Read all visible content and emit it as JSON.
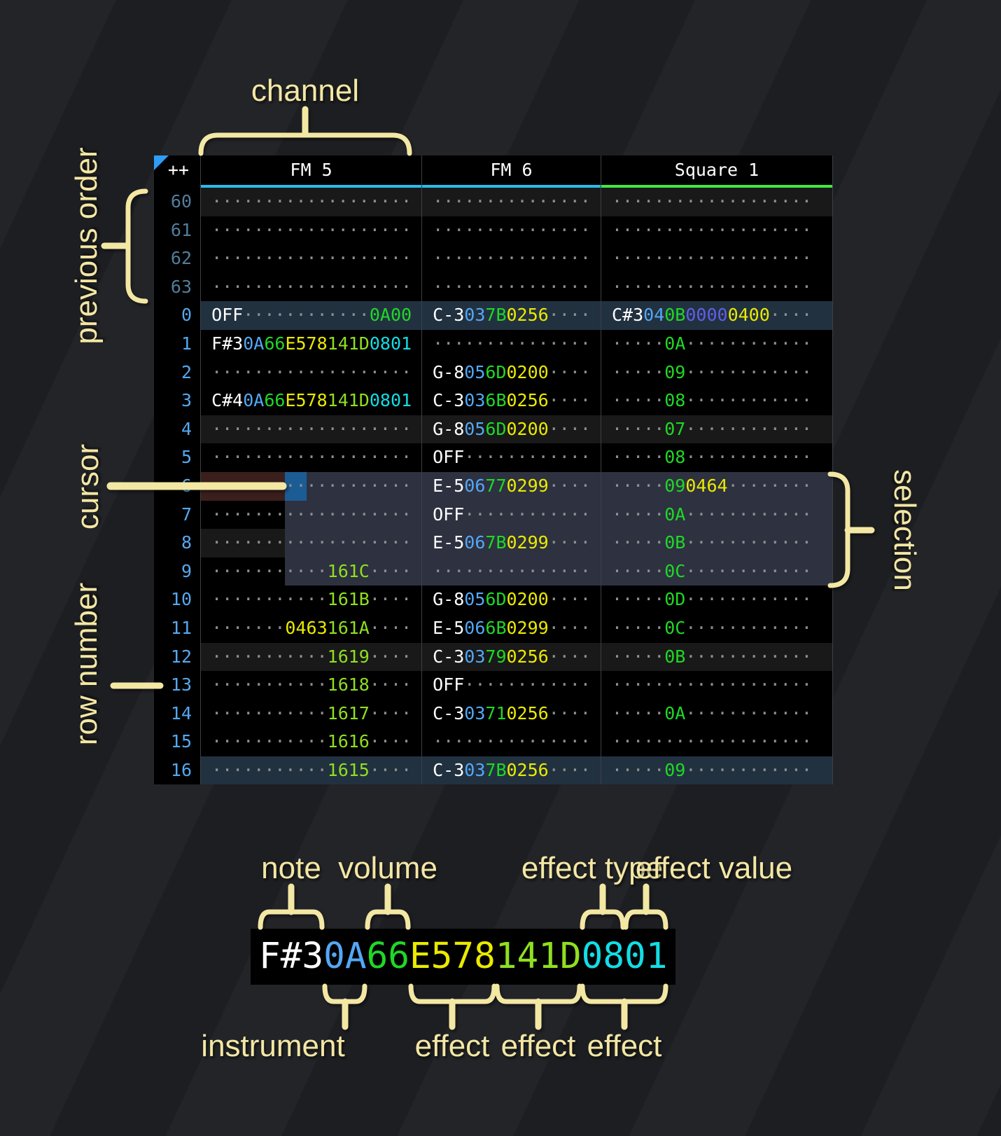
{
  "colors": {
    "page_bg": "#1e1f23",
    "table_bg": "#000000",
    "row_highlight_major": "#223140",
    "row_highlight_minor": "#191919",
    "selection_bg": "#2e3140",
    "cursor_bg": "#1c5c94",
    "cursor_row_bg": "#3b1f1d",
    "row_num": "#55a8ee",
    "row_num_prev": "#527d9b",
    "dot": "#8f8f8f",
    "note": "#ffffff",
    "instrument": "#54a7f4",
    "volume": "#1fd826",
    "fx_yellow": "#eaea00",
    "fx_lime": "#8fdf1f",
    "fx_cyan": "#12dde6",
    "fx_green": "#1fd826",
    "fx_violet": "#5f5fe8",
    "underline_fm": "#29bceb",
    "underline_square": "#41e841",
    "corner_triangle": "#2e9df5",
    "separator": "#3b4046",
    "annotation": "#f3e7a4"
  },
  "annotations": {
    "channel": "channel",
    "previous_order": "previous order",
    "cursor": "cursor",
    "row_number": "row number",
    "selection": "selection"
  },
  "tracker": {
    "corner": "++",
    "channels": [
      {
        "name": "FM 5",
        "accent": "#29bceb",
        "cls": "w-fm5",
        "key": "fm5"
      },
      {
        "name": "FM 6",
        "accent": "#29bceb",
        "cls": "w-fm6",
        "key": "fm6"
      },
      {
        "name": "Square 1",
        "accent": "#41e841",
        "cls": "w-sq1",
        "key": "sq1"
      }
    ],
    "rows": [
      {
        "n": "60",
        "prev": true,
        "hl": "min",
        "fm5": [
          [
            "···················",
            "d"
          ]
        ],
        "fm6": [
          [
            "···············",
            "d"
          ]
        ],
        "sq1": [
          [
            "···················",
            "d"
          ]
        ]
      },
      {
        "n": "61",
        "prev": true,
        "fm5": [
          [
            "···················",
            "d"
          ]
        ],
        "fm6": [
          [
            "···············",
            "d"
          ]
        ],
        "sq1": [
          [
            "···················",
            "d"
          ]
        ]
      },
      {
        "n": "62",
        "prev": true,
        "fm5": [
          [
            "···················",
            "d"
          ]
        ],
        "fm6": [
          [
            "···············",
            "d"
          ]
        ],
        "sq1": [
          [
            "···················",
            "d"
          ]
        ]
      },
      {
        "n": "63",
        "prev": true,
        "fm5": [
          [
            "···················",
            "d"
          ]
        ],
        "fm6": [
          [
            "···············",
            "d"
          ]
        ],
        "sq1": [
          [
            "···················",
            "d"
          ]
        ]
      },
      {
        "n": "0",
        "hl": "maj",
        "fm5": [
          [
            "OFF",
            "w"
          ],
          [
            "············",
            "d"
          ],
          [
            "0A00",
            "g"
          ]
        ],
        "fm6": [
          [
            "C-3",
            "w"
          ],
          [
            "03",
            "i"
          ],
          [
            "7B",
            "v"
          ],
          [
            "0256",
            "y"
          ],
          [
            "····",
            "d"
          ]
        ],
        "sq1": [
          [
            "C#3",
            "w"
          ],
          [
            "04",
            "i"
          ],
          [
            "0B",
            "v"
          ],
          [
            "0000",
            "p"
          ],
          [
            "0400",
            "y"
          ],
          [
            "····",
            "d"
          ]
        ]
      },
      {
        "n": "1",
        "fm5": [
          [
            "F#3",
            "w"
          ],
          [
            "0A",
            "i"
          ],
          [
            "66",
            "v"
          ],
          [
            "E578",
            "y"
          ],
          [
            "141D",
            "l"
          ],
          [
            "0801",
            "c"
          ]
        ],
        "fm6": [
          [
            "···············",
            "d"
          ]
        ],
        "sq1": [
          [
            "·····",
            "d"
          ],
          [
            "0A",
            "v"
          ],
          [
            "············",
            "d"
          ]
        ]
      },
      {
        "n": "2",
        "fm5": [
          [
            "···················",
            "d"
          ]
        ],
        "fm6": [
          [
            "G-8",
            "w"
          ],
          [
            "05",
            "i"
          ],
          [
            "6D",
            "v"
          ],
          [
            "0200",
            "y"
          ],
          [
            "····",
            "d"
          ]
        ],
        "sq1": [
          [
            "·····",
            "d"
          ],
          [
            "09",
            "v"
          ],
          [
            "············",
            "d"
          ]
        ]
      },
      {
        "n": "3",
        "fm5": [
          [
            "C#4",
            "w"
          ],
          [
            "0A",
            "i"
          ],
          [
            "66",
            "v"
          ],
          [
            "E578",
            "y"
          ],
          [
            "141D",
            "l"
          ],
          [
            "0801",
            "c"
          ]
        ],
        "fm6": [
          [
            "C-3",
            "w"
          ],
          [
            "03",
            "i"
          ],
          [
            "6B",
            "v"
          ],
          [
            "0256",
            "y"
          ],
          [
            "····",
            "d"
          ]
        ],
        "sq1": [
          [
            "·····",
            "d"
          ],
          [
            "08",
            "v"
          ],
          [
            "············",
            "d"
          ]
        ]
      },
      {
        "n": "4",
        "hl": "min",
        "fm5": [
          [
            "···················",
            "d"
          ]
        ],
        "fm6": [
          [
            "G-8",
            "w"
          ],
          [
            "05",
            "i"
          ],
          [
            "6D",
            "v"
          ],
          [
            "0200",
            "y"
          ],
          [
            "····",
            "d"
          ]
        ],
        "sq1": [
          [
            "·····",
            "d"
          ],
          [
            "07",
            "v"
          ],
          [
            "············",
            "d"
          ]
        ]
      },
      {
        "n": "5",
        "fm5": [
          [
            "···················",
            "d"
          ]
        ],
        "fm6": [
          [
            "OFF",
            "w"
          ],
          [
            "············",
            "d"
          ]
        ],
        "sq1": [
          [
            "·····",
            "d"
          ],
          [
            "08",
            "v"
          ],
          [
            "············",
            "d"
          ]
        ]
      },
      {
        "n": "6",
        "cursor": true,
        "fm5": [
          [
            "·······",
            "d",
            "crow"
          ],
          [
            "··",
            "d",
            "cur"
          ],
          [
            "··········",
            "d",
            "sel"
          ]
        ],
        "fm6": [
          [
            "E-5",
            "w",
            "sel"
          ],
          [
            "06",
            "i",
            "sel"
          ],
          [
            "77",
            "v",
            "sel"
          ],
          [
            "0299",
            "y",
            "sel"
          ],
          [
            "····",
            "d",
            "sel"
          ]
        ],
        "sq1": [
          [
            "·····",
            "d",
            "sel"
          ],
          [
            "09",
            "v",
            "sel"
          ],
          [
            "0464",
            "y",
            "sel"
          ],
          [
            "········",
            "d",
            "sel"
          ]
        ]
      },
      {
        "n": "7",
        "fm5": [
          [
            "·······",
            "d"
          ],
          [
            "············",
            "d",
            "sel"
          ]
        ],
        "fm6": [
          [
            "OFF",
            "w",
            "sel"
          ],
          [
            "············",
            "d",
            "sel"
          ]
        ],
        "sq1": [
          [
            "·····",
            "d",
            "sel"
          ],
          [
            "0A",
            "v",
            "sel"
          ],
          [
            "············",
            "d",
            "sel"
          ]
        ]
      },
      {
        "n": "8",
        "hl": "min",
        "fm5": [
          [
            "·······",
            "d"
          ],
          [
            "············",
            "d",
            "sel"
          ]
        ],
        "fm6": [
          [
            "E-5",
            "w",
            "sel"
          ],
          [
            "06",
            "i",
            "sel"
          ],
          [
            "7B",
            "v",
            "sel"
          ],
          [
            "0299",
            "y",
            "sel"
          ],
          [
            "····",
            "d",
            "sel"
          ]
        ],
        "sq1": [
          [
            "·····",
            "d",
            "sel"
          ],
          [
            "0B",
            "v",
            "sel"
          ],
          [
            "············",
            "d",
            "sel"
          ]
        ]
      },
      {
        "n": "9",
        "fm5": [
          [
            "·······",
            "d"
          ],
          [
            "····",
            "d",
            "sel"
          ],
          [
            "161C",
            "l",
            "sel"
          ],
          [
            "····",
            "d",
            "sel"
          ]
        ],
        "fm6": [
          [
            "···············",
            "d",
            "sel"
          ]
        ],
        "sq1": [
          [
            "·····",
            "d",
            "sel"
          ],
          [
            "0C",
            "v",
            "sel"
          ],
          [
            "············",
            "d",
            "sel"
          ]
        ]
      },
      {
        "n": "10",
        "fm5": [
          [
            "···········",
            "d"
          ],
          [
            "161B",
            "l"
          ],
          [
            "····",
            "d"
          ]
        ],
        "fm6": [
          [
            "G-8",
            "w"
          ],
          [
            "05",
            "i"
          ],
          [
            "6D",
            "v"
          ],
          [
            "0200",
            "y"
          ],
          [
            "····",
            "d"
          ]
        ],
        "sq1": [
          [
            "·····",
            "d"
          ],
          [
            "0D",
            "v"
          ],
          [
            "············",
            "d"
          ]
        ]
      },
      {
        "n": "11",
        "fm5": [
          [
            "·······",
            "d"
          ],
          [
            "0463",
            "y"
          ],
          [
            "161A",
            "l"
          ],
          [
            "····",
            "d"
          ]
        ],
        "fm6": [
          [
            "E-5",
            "w"
          ],
          [
            "06",
            "i"
          ],
          [
            "6B",
            "v"
          ],
          [
            "0299",
            "y"
          ],
          [
            "····",
            "d"
          ]
        ],
        "sq1": [
          [
            "·····",
            "d"
          ],
          [
            "0C",
            "v"
          ],
          [
            "············",
            "d"
          ]
        ]
      },
      {
        "n": "12",
        "hl": "min",
        "fm5": [
          [
            "···········",
            "d"
          ],
          [
            "1619",
            "l"
          ],
          [
            "····",
            "d"
          ]
        ],
        "fm6": [
          [
            "C-3",
            "w"
          ],
          [
            "03",
            "i"
          ],
          [
            "79",
            "v"
          ],
          [
            "0256",
            "y"
          ],
          [
            "····",
            "d"
          ]
        ],
        "sq1": [
          [
            "·····",
            "d"
          ],
          [
            "0B",
            "v"
          ],
          [
            "············",
            "d"
          ]
        ]
      },
      {
        "n": "13",
        "fm5": [
          [
            "···········",
            "d"
          ],
          [
            "1618",
            "l"
          ],
          [
            "····",
            "d"
          ]
        ],
        "fm6": [
          [
            "OFF",
            "w"
          ],
          [
            "············",
            "d"
          ]
        ],
        "sq1": [
          [
            "···················",
            "d"
          ]
        ]
      },
      {
        "n": "14",
        "fm5": [
          [
            "···········",
            "d"
          ],
          [
            "1617",
            "l"
          ],
          [
            "····",
            "d"
          ]
        ],
        "fm6": [
          [
            "C-3",
            "w"
          ],
          [
            "03",
            "i"
          ],
          [
            "71",
            "v"
          ],
          [
            "0256",
            "y"
          ],
          [
            "····",
            "d"
          ]
        ],
        "sq1": [
          [
            "·····",
            "d"
          ],
          [
            "0A",
            "v"
          ],
          [
            "············",
            "d"
          ]
        ]
      },
      {
        "n": "15",
        "fm5": [
          [
            "···········",
            "d"
          ],
          [
            "1616",
            "l"
          ],
          [
            "····",
            "d"
          ]
        ],
        "fm6": [
          [
            "···············",
            "d"
          ]
        ],
        "sq1": [
          [
            "···················",
            "d"
          ]
        ]
      },
      {
        "n": "16",
        "hl": "maj",
        "fm5": [
          [
            "···········",
            "d"
          ],
          [
            "1615",
            "l"
          ],
          [
            "····",
            "d"
          ]
        ],
        "fm6": [
          [
            "C-3",
            "w"
          ],
          [
            "03",
            "i"
          ],
          [
            "7B",
            "v"
          ],
          [
            "0256",
            "y"
          ],
          [
            "····",
            "d"
          ]
        ],
        "sq1": [
          [
            "·····",
            "d"
          ],
          [
            "09",
            "v"
          ],
          [
            "············",
            "d"
          ]
        ]
      }
    ]
  },
  "legend": {
    "cell_segments": [
      {
        "t": "F#3",
        "c": "w"
      },
      {
        "t": "0A",
        "c": "i"
      },
      {
        "t": "66",
        "c": "v"
      },
      {
        "t": "E578",
        "c": "y"
      },
      {
        "t": "141D",
        "c": "l"
      },
      {
        "t": "0801",
        "c": "c"
      }
    ],
    "top_labels": {
      "note": "note",
      "volume": "volume",
      "effect_type": "effect type",
      "effect_value": "effect value"
    },
    "bottom_labels": {
      "instrument": "instrument",
      "effect1": "effect",
      "effect2": "effect",
      "effect3": "effect"
    }
  }
}
